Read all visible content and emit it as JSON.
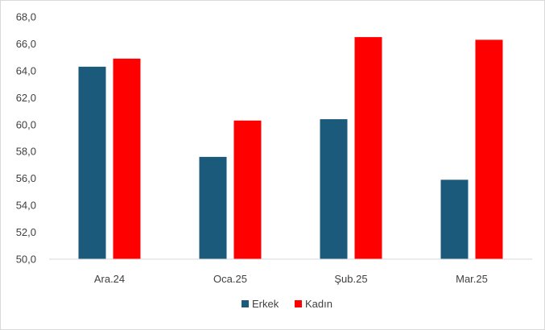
{
  "chart_data": {
    "type": "bar",
    "title": "",
    "xlabel": "",
    "ylabel": "",
    "categories": [
      "Ara.24",
      "Oca.25",
      "Şub.25",
      "Mar.25"
    ],
    "series": [
      {
        "name": "Erkek",
        "color": "#1b5a7a",
        "values": [
          64.3,
          57.6,
          60.4,
          55.9
        ]
      },
      {
        "name": "Kadın",
        "color": "#ff0000",
        "values": [
          64.9,
          60.3,
          66.5,
          66.3
        ]
      }
    ],
    "ylim": [
      50,
      68
    ],
    "yticks": [
      "50,0",
      "52,0",
      "54,0",
      "56,0",
      "58,0",
      "60,0",
      "62,0",
      "64,0",
      "66,0",
      "68,0"
    ],
    "grid": false,
    "legend_position": "bottom"
  }
}
